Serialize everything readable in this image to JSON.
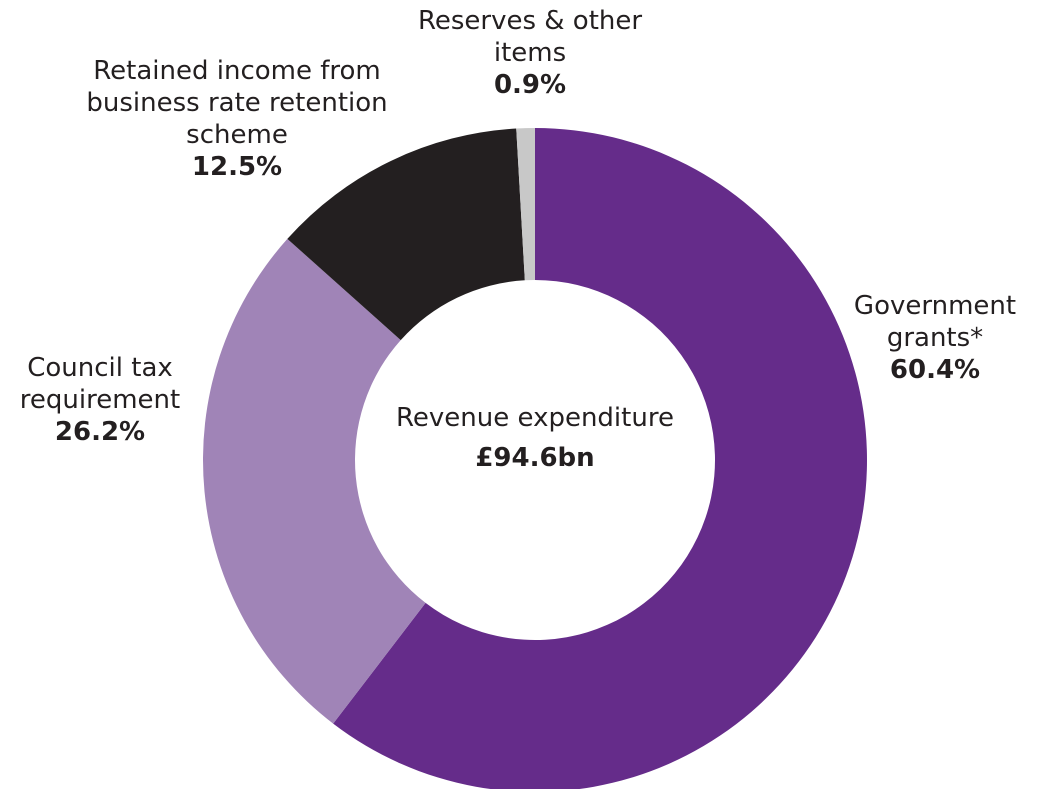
{
  "chart_data": {
    "type": "pie",
    "donut": true,
    "center": {
      "label": "Revenue expenditure",
      "value": "£94.6bn"
    },
    "slices": [
      {
        "name": "Government grants*",
        "value": 60.4,
        "label": "60.4%",
        "color": "#652c8a"
      },
      {
        "name": "Council tax requirement",
        "value": 26.2,
        "label": "26.2%",
        "color": "#a084b7"
      },
      {
        "name": "Retained income from business rate retention scheme",
        "value": 12.5,
        "label": "12.5%",
        "color": "#231f20"
      },
      {
        "name": "Reserves & other items",
        "value": 0.9,
        "label": "0.9%",
        "color": "#c8c8c8"
      }
    ]
  }
}
